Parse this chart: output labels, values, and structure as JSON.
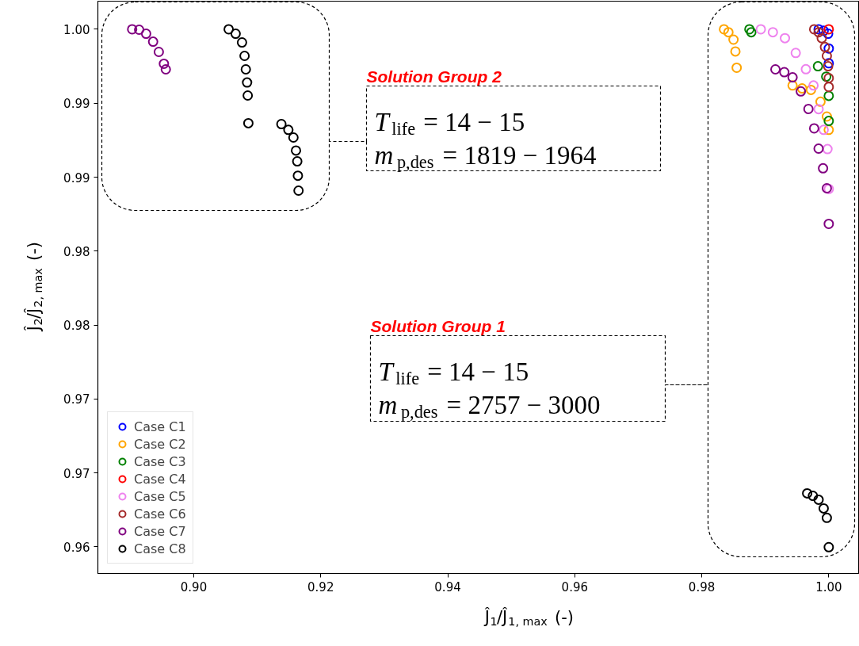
{
  "chart_data": {
    "type": "scatter",
    "xlabel": "Ĵ$_{1}$/Ĵ$_{1, max}$ (-)",
    "ylabel": "Ĵ$_{2}$/Ĵ$_{2, max}$ (-)",
    "xlim": [
      0.8849,
      1.0047
    ],
    "ylim": [
      0.9632,
      1.0019
    ],
    "xticks": [
      {
        "value": 0.9,
        "label": "0.90"
      },
      {
        "value": 0.92,
        "label": "0.92"
      },
      {
        "value": 0.94,
        "label": "0.94"
      },
      {
        "value": 0.96,
        "label": "0.96"
      },
      {
        "value": 0.98,
        "label": "0.98"
      },
      {
        "value": 1.0,
        "label": "1.00"
      }
    ],
    "yticks": [
      {
        "value": 1.0,
        "label": "1.00"
      },
      {
        "value": 0.995,
        "label": "0.99"
      },
      {
        "value": 0.99,
        "label": "0.99"
      },
      {
        "value": 0.985,
        "label": "0.98"
      },
      {
        "value": 0.98,
        "label": "0.98"
      },
      {
        "value": 0.975,
        "label": "0.97"
      },
      {
        "value": 0.97,
        "label": "0.97"
      },
      {
        "value": 0.965,
        "label": "0.96"
      }
    ],
    "grid": false,
    "legend": "bottom left",
    "marker": "circle",
    "annotations": [
      "Solution  Group 2",
      "T$_{life}$ = 14 − 15",
      "m$_{p,des}$ = 1819 − 1964",
      "Solution  Group 1",
      "T$_{life}$ = 14 − 15",
      "m$_{p,des}$ = 2757 − 3000"
    ],
    "series": [
      {
        "name": "Case C1",
        "color": "#0000ff",
        "x": [
          0.9984,
          0.9992,
          0.9999,
          1.0,
          1.0
        ],
        "values": [
          1.0,
          0.9999,
          0.9997,
          0.9987,
          0.9977
        ]
      },
      {
        "name": "Case C2",
        "color": "#ffa500",
        "x": [
          0.9835,
          0.9842,
          0.985,
          0.9853,
          0.9855,
          0.9943,
          0.9958,
          0.9972,
          0.9987,
          0.9997,
          1.0
        ],
        "values": [
          1.0,
          0.9998,
          0.9993,
          0.9985,
          0.9974,
          0.9962,
          0.996,
          0.9959,
          0.9951,
          0.9941,
          0.9932
        ]
      },
      {
        "name": "Case C3",
        "color": "#008000",
        "x": [
          0.9875,
          0.9878,
          0.9983,
          0.9996,
          1.0,
          1.0
        ],
        "values": [
          1.0,
          0.9998,
          0.9975,
          0.9968,
          0.9955,
          0.9938
        ]
      },
      {
        "name": "Case C4",
        "color": "#ff0000",
        "x": [
          1.0
        ],
        "values": [
          1.0
        ]
      },
      {
        "name": "Case C5",
        "color": "#ee82ee",
        "x": [
          0.9893,
          0.9912,
          0.9931,
          0.9948,
          0.9964,
          0.9976,
          0.9984,
          0.9992,
          0.9998,
          1.0
        ],
        "values": [
          1.0,
          0.9998,
          0.9994,
          0.9984,
          0.9973,
          0.9962,
          0.9946,
          0.9932,
          0.9919,
          0.9892
        ]
      },
      {
        "name": "Case C6",
        "color": "#a52a2a",
        "x": [
          0.9977,
          0.9984,
          0.9989,
          0.9994,
          0.9997,
          0.9999,
          1.0,
          1.0
        ],
        "values": [
          1.0,
          0.9998,
          0.9994,
          0.9988,
          0.9982,
          0.9975,
          0.9967,
          0.9961
        ]
      },
      {
        "name": "Case C7",
        "color": "#800080",
        "x": [
          0.8903,
          0.8914,
          0.8925,
          0.8936,
          0.8945,
          0.8953,
          0.8956,
          0.9916,
          0.993,
          0.9943,
          0.9956,
          0.9968,
          0.9977,
          0.9984,
          0.9991,
          0.9997,
          1.0
        ],
        "values": [
          1.0,
          0.99997,
          0.9997,
          0.99916,
          0.99847,
          0.99767,
          0.99729,
          0.99729,
          0.9971,
          0.99675,
          0.9958,
          0.99461,
          0.9933,
          0.99193,
          0.9906,
          0.98925,
          0.98684
        ]
      },
      {
        "name": "Case C8",
        "color": "#000000",
        "x": [
          0.9055,
          0.9066,
          0.9076,
          0.908,
          0.9082,
          0.9084,
          0.9085,
          0.9086,
          0.9138,
          0.9149,
          0.9157,
          0.9161,
          0.9163,
          0.9164,
          0.9165,
          0.9966,
          0.9975,
          0.9984,
          0.9992,
          0.9997,
          1.0
        ],
        "values": [
          1.0,
          0.9997,
          0.99911,
          0.9982,
          0.99729,
          0.9964,
          0.99552,
          0.99365,
          0.99359,
          0.9932,
          0.99268,
          0.9918,
          0.99107,
          0.9901,
          0.98909,
          0.96862,
          0.96845,
          0.96819,
          0.9676,
          0.96696,
          0.96498
        ]
      }
    ]
  }
}
